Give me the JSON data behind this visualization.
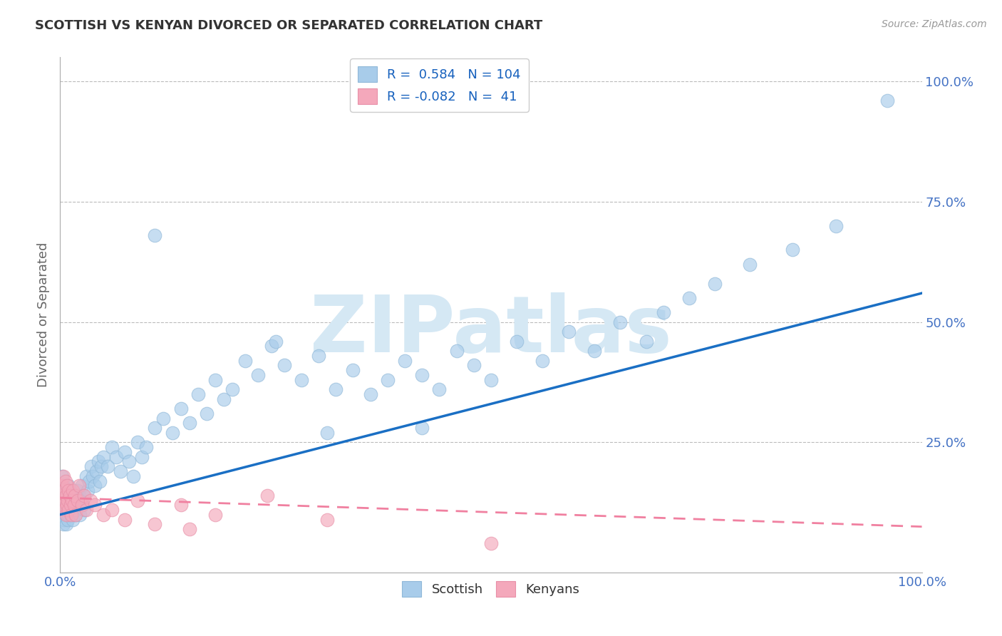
{
  "title": "SCOTTISH VS KENYAN DIVORCED OR SEPARATED CORRELATION CHART",
  "source_text": "Source: ZipAtlas.com",
  "ylabel": "Divorced or Separated",
  "xlim": [
    0,
    1.0
  ],
  "ylim": [
    -0.02,
    1.05
  ],
  "xticks": [
    0.0,
    1.0
  ],
  "yticks": [
    0.25,
    0.5,
    0.75,
    1.0
  ],
  "xticklabels": [
    "0.0%",
    "100.0%"
  ],
  "yticklabels": [
    "25.0%",
    "50.0%",
    "75.0%",
    "100.0%"
  ],
  "scottish_R": 0.584,
  "scottish_N": 104,
  "kenyan_R": -0.082,
  "kenyan_N": 41,
  "scottish_color": "#A8CCEA",
  "kenyan_color": "#F4A8BB",
  "trend_scottish_color": "#1A6FC4",
  "trend_kenyan_color": "#F080A0",
  "background_color": "#FFFFFF",
  "grid_color": "#BBBBBB",
  "watermark_color": "#D5E8F4",
  "title_color": "#333333",
  "axis_label_color": "#666666",
  "tick_color": "#4472C4",
  "legend_R_color": "#1560BD",
  "scottish_trend_x0": 0.0,
  "scottish_trend_y0": 0.1,
  "scottish_trend_x1": 1.0,
  "scottish_trend_y1": 0.56,
  "kenyan_trend_x0": 0.0,
  "kenyan_trend_y0": 0.135,
  "kenyan_trend_x1": 1.0,
  "kenyan_trend_y1": 0.075,
  "scottish_x": [
    0.001,
    0.002,
    0.002,
    0.003,
    0.003,
    0.004,
    0.004,
    0.005,
    0.005,
    0.005,
    0.006,
    0.006,
    0.007,
    0.007,
    0.008,
    0.008,
    0.009,
    0.009,
    0.01,
    0.01,
    0.011,
    0.011,
    0.012,
    0.013,
    0.014,
    0.015,
    0.015,
    0.016,
    0.017,
    0.018,
    0.019,
    0.02,
    0.021,
    0.022,
    0.023,
    0.024,
    0.025,
    0.026,
    0.027,
    0.028,
    0.03,
    0.032,
    0.034,
    0.036,
    0.038,
    0.04,
    0.042,
    0.044,
    0.046,
    0.048,
    0.05,
    0.055,
    0.06,
    0.065,
    0.07,
    0.075,
    0.08,
    0.085,
    0.09,
    0.095,
    0.1,
    0.11,
    0.12,
    0.13,
    0.14,
    0.15,
    0.16,
    0.17,
    0.18,
    0.19,
    0.2,
    0.215,
    0.23,
    0.245,
    0.26,
    0.28,
    0.3,
    0.32,
    0.34,
    0.36,
    0.38,
    0.4,
    0.42,
    0.44,
    0.46,
    0.48,
    0.5,
    0.53,
    0.56,
    0.59,
    0.62,
    0.65,
    0.68,
    0.7,
    0.73,
    0.76,
    0.8,
    0.85,
    0.9,
    0.96,
    0.11,
    0.25,
    0.31,
    0.42
  ],
  "scottish_y": [
    0.15,
    0.12,
    0.18,
    0.1,
    0.14,
    0.08,
    0.16,
    0.11,
    0.13,
    0.09,
    0.14,
    0.1,
    0.12,
    0.08,
    0.15,
    0.11,
    0.09,
    0.13,
    0.1,
    0.16,
    0.12,
    0.14,
    0.1,
    0.12,
    0.11,
    0.13,
    0.09,
    0.14,
    0.1,
    0.12,
    0.11,
    0.15,
    0.12,
    0.14,
    0.1,
    0.13,
    0.16,
    0.12,
    0.14,
    0.11,
    0.18,
    0.15,
    0.17,
    0.2,
    0.18,
    0.16,
    0.19,
    0.21,
    0.17,
    0.2,
    0.22,
    0.2,
    0.24,
    0.22,
    0.19,
    0.23,
    0.21,
    0.18,
    0.25,
    0.22,
    0.24,
    0.28,
    0.3,
    0.27,
    0.32,
    0.29,
    0.35,
    0.31,
    0.38,
    0.34,
    0.36,
    0.42,
    0.39,
    0.45,
    0.41,
    0.38,
    0.43,
    0.36,
    0.4,
    0.35,
    0.38,
    0.42,
    0.39,
    0.36,
    0.44,
    0.41,
    0.38,
    0.46,
    0.42,
    0.48,
    0.44,
    0.5,
    0.46,
    0.52,
    0.55,
    0.58,
    0.62,
    0.65,
    0.7,
    0.96,
    0.68,
    0.46,
    0.27,
    0.28
  ],
  "kenyan_x": [
    0.001,
    0.002,
    0.003,
    0.004,
    0.004,
    0.005,
    0.005,
    0.006,
    0.007,
    0.007,
    0.008,
    0.008,
    0.009,
    0.01,
    0.01,
    0.011,
    0.012,
    0.013,
    0.014,
    0.015,
    0.016,
    0.017,
    0.018,
    0.02,
    0.022,
    0.025,
    0.028,
    0.03,
    0.035,
    0.04,
    0.05,
    0.06,
    0.075,
    0.09,
    0.11,
    0.14,
    0.18,
    0.24,
    0.31,
    0.5,
    0.15
  ],
  "kenyan_y": [
    0.14,
    0.16,
    0.13,
    0.12,
    0.18,
    0.15,
    0.11,
    0.17,
    0.14,
    0.1,
    0.16,
    0.12,
    0.13,
    0.15,
    0.11,
    0.14,
    0.12,
    0.1,
    0.13,
    0.15,
    0.12,
    0.14,
    0.1,
    0.13,
    0.16,
    0.12,
    0.14,
    0.11,
    0.13,
    0.12,
    0.1,
    0.11,
    0.09,
    0.13,
    0.08,
    0.12,
    0.1,
    0.14,
    0.09,
    0.04,
    0.07
  ]
}
